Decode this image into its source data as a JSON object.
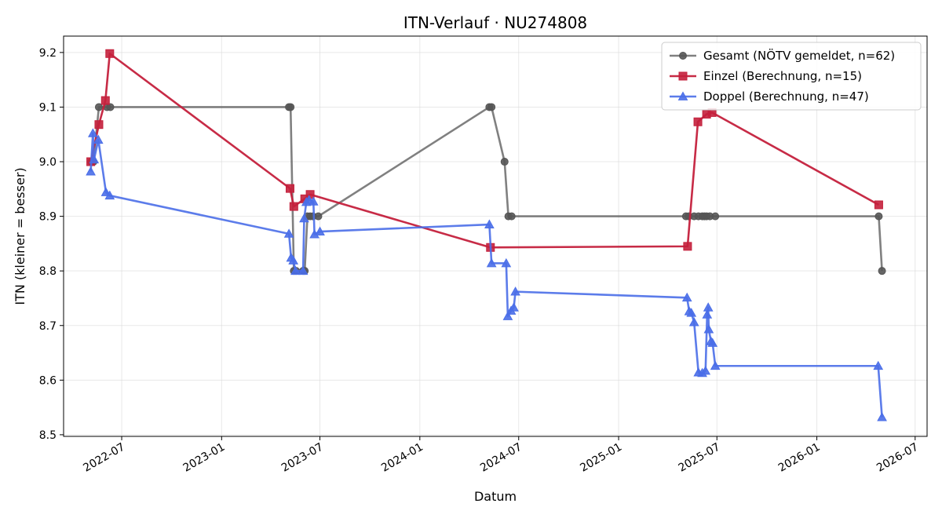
{
  "chart_data": {
    "type": "line",
    "title": "ITN-Verlauf · NU274808",
    "xlabel": "Datum",
    "ylabel": "ITN  (kleiner = besser)",
    "xlim": [
      "2022-03-16",
      "2026-07-23"
    ],
    "ylim": [
      8.497,
      9.23
    ],
    "x_ticks": [
      "2022-07",
      "2023-01",
      "2023-07",
      "2024-01",
      "2024-07",
      "2025-01",
      "2025-07",
      "2026-01",
      "2026-07"
    ],
    "y_ticks": [
      8.5,
      8.6,
      8.7,
      8.8,
      8.9,
      9.0,
      9.1,
      9.2
    ],
    "grid": true,
    "legend_position": "top-right",
    "series": [
      {
        "name": "Gesamt (NÖTV gemeldet, n=62)",
        "color": "#555555",
        "marker": "circle",
        "points": [
          {
            "x": "2022-05-06",
            "y": 9.0
          },
          {
            "x": "2022-05-10",
            "y": 9.0
          },
          {
            "x": "2022-05-20",
            "y": 9.1
          },
          {
            "x": "2022-06-04",
            "y": 9.1
          },
          {
            "x": "2022-06-10",
            "y": 9.1
          },
          {
            "x": "2023-05-05",
            "y": 9.1
          },
          {
            "x": "2023-05-08",
            "y": 9.1
          },
          {
            "x": "2023-05-14",
            "y": 8.8
          },
          {
            "x": "2023-05-18",
            "y": 8.8
          },
          {
            "x": "2023-05-31",
            "y": 8.8
          },
          {
            "x": "2023-06-03",
            "y": 8.8
          },
          {
            "x": "2023-06-08",
            "y": 8.9
          },
          {
            "x": "2023-06-13",
            "y": 8.9
          },
          {
            "x": "2023-06-18",
            "y": 8.9
          },
          {
            "x": "2023-06-28",
            "y": 8.9
          },
          {
            "x": "2024-05-08",
            "y": 9.1
          },
          {
            "x": "2024-05-12",
            "y": 9.1
          },
          {
            "x": "2024-06-05",
            "y": 9.0
          },
          {
            "x": "2024-06-12",
            "y": 8.9
          },
          {
            "x": "2024-06-18",
            "y": 8.9
          },
          {
            "x": "2025-05-05",
            "y": 8.9
          },
          {
            "x": "2025-05-10",
            "y": 8.9
          },
          {
            "x": "2025-05-20",
            "y": 8.9
          },
          {
            "x": "2025-05-28",
            "y": 8.9
          },
          {
            "x": "2025-06-04",
            "y": 8.9
          },
          {
            "x": "2025-06-08",
            "y": 8.9
          },
          {
            "x": "2025-06-12",
            "y": 8.9
          },
          {
            "x": "2025-06-18",
            "y": 8.9
          },
          {
            "x": "2025-06-28",
            "y": 8.9
          },
          {
            "x": "2026-04-25",
            "y": 8.9
          },
          {
            "x": "2026-05-01",
            "y": 8.8
          }
        ]
      },
      {
        "name": "Einzel (Berechnung, n=15)",
        "color": "#c4203c",
        "marker": "square",
        "points": [
          {
            "x": "2022-05-05",
            "y": 9.0
          },
          {
            "x": "2022-05-20",
            "y": 9.068
          },
          {
            "x": "2022-06-01",
            "y": 9.112
          },
          {
            "x": "2022-06-09",
            "y": 9.198
          },
          {
            "x": "2023-05-07",
            "y": 8.951
          },
          {
            "x": "2023-05-14",
            "y": 8.918
          },
          {
            "x": "2023-06-03",
            "y": 8.932
          },
          {
            "x": "2023-06-13",
            "y": 8.94
          },
          {
            "x": "2024-05-10",
            "y": 8.843
          },
          {
            "x": "2025-05-08",
            "y": 8.845
          },
          {
            "x": "2025-05-27",
            "y": 9.073
          },
          {
            "x": "2025-06-12",
            "y": 9.087
          },
          {
            "x": "2025-06-22",
            "y": 9.09
          },
          {
            "x": "2026-04-25",
            "y": 8.921
          }
        ]
      },
      {
        "name": "Doppel (Berechnung, n=47)",
        "color": "#4a6ee8",
        "marker": "triangle",
        "points": [
          {
            "x": "2022-05-05",
            "y": 8.982
          },
          {
            "x": "2022-05-09",
            "y": 9.052
          },
          {
            "x": "2022-05-11",
            "y": 9.004
          },
          {
            "x": "2022-05-19",
            "y": 9.04
          },
          {
            "x": "2022-06-02",
            "y": 8.944
          },
          {
            "x": "2022-06-09",
            "y": 8.938
          },
          {
            "x": "2023-05-05",
            "y": 8.868
          },
          {
            "x": "2023-05-09",
            "y": 8.824
          },
          {
            "x": "2023-05-13",
            "y": 8.819
          },
          {
            "x": "2023-05-17",
            "y": 8.8
          },
          {
            "x": "2023-05-31",
            "y": 8.8
          },
          {
            "x": "2023-06-02",
            "y": 8.896
          },
          {
            "x": "2023-06-06",
            "y": 8.926
          },
          {
            "x": "2023-06-11",
            "y": 8.93
          },
          {
            "x": "2023-06-19",
            "y": 8.927
          },
          {
            "x": "2023-06-21",
            "y": 8.867
          },
          {
            "x": "2023-07-01",
            "y": 8.872
          },
          {
            "x": "2024-05-08",
            "y": 8.885
          },
          {
            "x": "2024-05-12",
            "y": 8.814
          },
          {
            "x": "2024-06-08",
            "y": 8.814
          },
          {
            "x": "2024-06-11",
            "y": 8.717
          },
          {
            "x": "2024-06-17",
            "y": 8.727
          },
          {
            "x": "2024-06-22",
            "y": 8.733
          },
          {
            "x": "2024-06-25",
            "y": 8.762
          },
          {
            "x": "2025-05-07",
            "y": 8.751
          },
          {
            "x": "2025-05-11",
            "y": 8.726
          },
          {
            "x": "2025-05-15",
            "y": 8.723
          },
          {
            "x": "2025-05-20",
            "y": 8.706
          },
          {
            "x": "2025-05-28",
            "y": 8.614
          },
          {
            "x": "2025-06-04",
            "y": 8.613
          },
          {
            "x": "2025-06-10",
            "y": 8.617
          },
          {
            "x": "2025-06-13",
            "y": 8.72
          },
          {
            "x": "2025-06-15",
            "y": 8.733
          },
          {
            "x": "2025-06-16",
            "y": 8.693
          },
          {
            "x": "2025-06-20",
            "y": 8.671
          },
          {
            "x": "2025-06-23",
            "y": 8.668
          },
          {
            "x": "2025-06-28",
            "y": 8.626
          },
          {
            "x": "2026-04-24",
            "y": 8.626
          },
          {
            "x": "2026-05-01",
            "y": 8.532
          }
        ]
      }
    ]
  }
}
